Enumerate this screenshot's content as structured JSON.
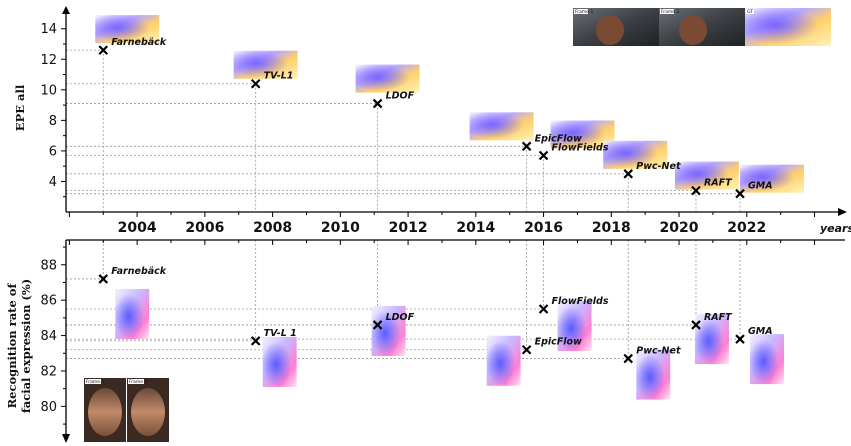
{
  "chart_data": [
    {
      "type": "scatter",
      "ylabel": "EPE all",
      "xlabel": "years",
      "xlim": [
        2001.9,
        2024.9
      ],
      "ylim": [
        2.0,
        14.9
      ],
      "xticks": [
        2004,
        2006,
        2008,
        2010,
        2012,
        2014,
        2016,
        2018,
        2020,
        2022
      ],
      "yticks": [
        4,
        6,
        8,
        10,
        12,
        14
      ],
      "points": [
        {
          "label": "Farnebäck",
          "x": 2003.0,
          "y": 12.6
        },
        {
          "label": "TV-L1",
          "x": 2007.5,
          "y": 10.4
        },
        {
          "label": "LDOF",
          "x": 2011.1,
          "y": 9.1
        },
        {
          "label": "EpicFlow",
          "x": 2015.5,
          "y": 6.3
        },
        {
          "label": "FlowFields",
          "x": 2016.0,
          "y": 5.7
        },
        {
          "label": "Pwc-Net",
          "x": 2018.5,
          "y": 4.5
        },
        {
          "label": "RAFT",
          "x": 2020.5,
          "y": 3.4
        },
        {
          "label": "GMA",
          "x": 2021.8,
          "y": 3.2
        }
      ],
      "inset_tags": [
        "Frame 1",
        "Frame 2",
        "GT"
      ]
    },
    {
      "type": "scatter",
      "ylabel": "Recognition rate of facial expression (%)",
      "xlim": [
        2001.9,
        2024.9
      ],
      "ylim": [
        78.1,
        89.4
      ],
      "yticks": [
        80,
        82,
        84,
        86,
        88
      ],
      "points": [
        {
          "label": "Farnebäck",
          "x": 2003.0,
          "y": 87.2
        },
        {
          "label": "TV-L1",
          "x": 2007.5,
          "y": 83.7
        },
        {
          "label": "LDOF",
          "x": 2011.1,
          "y": 84.6
        },
        {
          "label": "EpicFlow",
          "x": 2015.5,
          "y": 83.2
        },
        {
          "label": "FlowFields",
          "x": 2016.0,
          "y": 85.5
        },
        {
          "label": "Pwc-Net",
          "x": 2018.5,
          "y": 82.7
        },
        {
          "label": "RAFT",
          "x": 2020.5,
          "y": 84.6
        },
        {
          "label": "GMA",
          "x": 2021.8,
          "y": 83.8
        }
      ],
      "inset_tags": [
        "Frame 1",
        "Frame 2"
      ]
    }
  ],
  "display_labels": {
    "tv_l1_bottom": "TV-L 1"
  }
}
